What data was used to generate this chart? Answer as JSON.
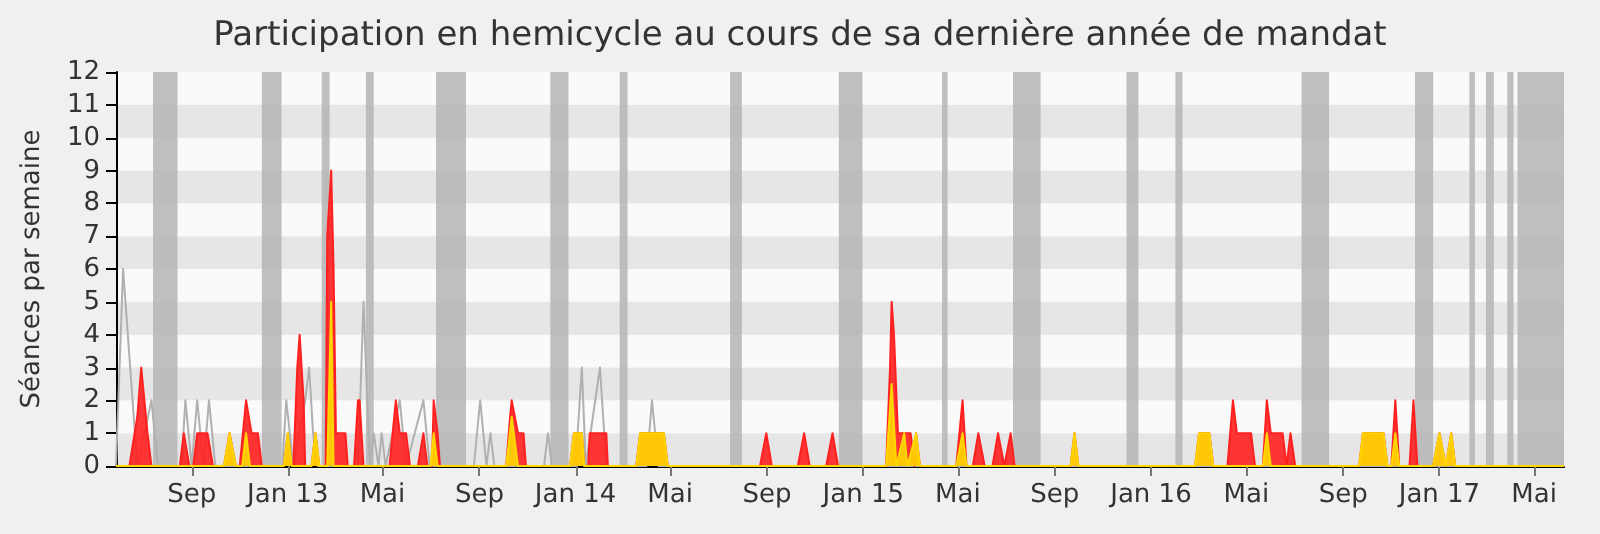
{
  "chart_data": {
    "type": "area",
    "title": "Participation en hemicycle au cours de sa dernière année de mandat",
    "ylabel": "Séances par semaine",
    "xlim": [
      "2012-05-28",
      "2017-06-08"
    ],
    "xticks": [
      {
        "value": "2012-09-01",
        "label": "Sep"
      },
      {
        "value": "2013-01-01",
        "label": "Jan 13"
      },
      {
        "value": "2013-05-01",
        "label": "Mai"
      },
      {
        "value": "2013-09-01",
        "label": "Sep"
      },
      {
        "value": "2014-01-01",
        "label": "Jan 14"
      },
      {
        "value": "2014-05-01",
        "label": "Mai"
      },
      {
        "value": "2014-09-01",
        "label": "Sep"
      },
      {
        "value": "2015-01-01",
        "label": "Jan 15"
      },
      {
        "value": "2015-05-01",
        "label": "Mai"
      },
      {
        "value": "2015-09-01",
        "label": "Sep"
      },
      {
        "value": "2016-01-01",
        "label": "Jan 16"
      },
      {
        "value": "2016-05-01",
        "label": "Mai"
      },
      {
        "value": "2016-09-01",
        "label": "Sep"
      },
      {
        "value": "2017-01-01",
        "label": "Jan 17"
      },
      {
        "value": "2017-05-01",
        "label": "Mai"
      }
    ],
    "ylim": [
      0,
      12
    ],
    "yticks": [
      0,
      1,
      2,
      3,
      4,
      5,
      6,
      7,
      8,
      9,
      10,
      11,
      12
    ],
    "marker": "none",
    "line_style": "solid",
    "bands": [
      {
        "axis": "x",
        "from": "2012-07-14",
        "to": "2012-08-14",
        "color": "#b4b4b4"
      },
      {
        "axis": "x",
        "from": "2012-11-29",
        "to": "2012-12-24",
        "color": "#b4b4b4"
      },
      {
        "axis": "x",
        "from": "2013-02-13",
        "to": "2013-02-23",
        "color": "#b4b4b4"
      },
      {
        "axis": "x",
        "from": "2013-04-10",
        "to": "2013-04-20",
        "color": "#b4b4b4"
      },
      {
        "axis": "x",
        "from": "2013-07-08",
        "to": "2013-08-15",
        "color": "#b4b4b4"
      },
      {
        "axis": "x",
        "from": "2013-11-30",
        "to": "2013-12-23",
        "color": "#b4b4b4"
      },
      {
        "axis": "x",
        "from": "2014-02-26",
        "to": "2014-03-08",
        "color": "#b4b4b4"
      },
      {
        "axis": "x",
        "from": "2014-07-16",
        "to": "2014-07-31",
        "color": "#b4b4b4"
      },
      {
        "axis": "x",
        "from": "2014-12-01",
        "to": "2014-12-31",
        "color": "#b4b4b4"
      },
      {
        "axis": "x",
        "from": "2015-04-11",
        "to": "2015-04-18",
        "color": "#b4b4b4"
      },
      {
        "axis": "x",
        "from": "2015-07-10",
        "to": "2015-08-14",
        "color": "#b4b4b4"
      },
      {
        "axis": "x",
        "from": "2015-12-01",
        "to": "2015-12-16",
        "color": "#b4b4b4"
      },
      {
        "axis": "x",
        "from": "2016-02-01",
        "to": "2016-02-10",
        "color": "#b4b4b4"
      },
      {
        "axis": "x",
        "from": "2016-07-10",
        "to": "2016-08-14",
        "color": "#b4b4b4"
      },
      {
        "axis": "x",
        "from": "2016-12-01",
        "to": "2016-12-24",
        "color": "#b4b4b4"
      },
      {
        "axis": "x",
        "from": "2017-02-08",
        "to": "2017-02-15",
        "color": "#b4b4b4"
      },
      {
        "axis": "x",
        "from": "2017-03-01",
        "to": "2017-03-11",
        "color": "#b4b4b4"
      },
      {
        "axis": "x",
        "from": "2017-03-28",
        "to": "2017-04-05",
        "color": "#b4b4b4"
      },
      {
        "axis": "x",
        "from": "2017-04-10",
        "to": "2017-06-08",
        "color": "#b4b4b4"
      }
    ],
    "series": [
      {
        "type": "line",
        "color": "#b0b0b0",
        "x": [
          "2012-05-28",
          "2012-06-06",
          "2012-06-24",
          "2012-07-12",
          "2012-07-20",
          "2012-08-19",
          "2012-08-24",
          "2012-09-01",
          "2012-09-08",
          "2012-09-16",
          "2012-09-23",
          "2012-10-01",
          "2012-12-25",
          "2012-12-30",
          "2013-01-08",
          "2013-01-23",
          "2013-01-28",
          "2013-02-02",
          "2013-02-08",
          "2013-03-31",
          "2013-04-07",
          "2013-04-15",
          "2013-04-20",
          "2013-04-26",
          "2013-04-30",
          "2013-05-05",
          "2013-05-23",
          "2013-05-31",
          "2013-06-22",
          "2013-06-30",
          "2013-08-25",
          "2013-09-02",
          "2013-09-10",
          "2013-09-15",
          "2013-09-20",
          "2013-11-22",
          "2013-11-27",
          "2013-12-02",
          "2014-01-01",
          "2014-01-09",
          "2014-01-14",
          "2014-02-01",
          "2014-02-09",
          "2014-04-01",
          "2014-04-08",
          "2014-04-16",
          "2017-06-08"
        ],
        "values": [
          0,
          6,
          0,
          2,
          0,
          0,
          2,
          0,
          2,
          0,
          2,
          0,
          0,
          2,
          0,
          2,
          3,
          1,
          0,
          0,
          5,
          0,
          1,
          0,
          1,
          0,
          2,
          0,
          2,
          0,
          0,
          2,
          0,
          1,
          0,
          0,
          1,
          0,
          0,
          3,
          0,
          3,
          0,
          0,
          2,
          0,
          0
        ]
      },
      {
        "color": "#ff2020",
        "x": [
          "2012-05-28",
          "2012-06-14",
          "2012-06-24",
          "2012-06-29",
          "2012-07-07",
          "2012-07-12",
          "2012-08-17",
          "2012-08-22",
          "2012-08-29",
          "2012-09-03",
          "2012-09-08",
          "2012-09-21",
          "2012-09-28",
          "2012-10-12",
          "2012-10-19",
          "2012-10-27",
          "2012-11-01",
          "2012-11-09",
          "2012-11-16",
          "2012-11-24",
          "2012-11-29",
          "2012-12-27",
          "2013-01-01",
          "2013-01-06",
          "2013-01-08",
          "2013-01-13",
          "2013-01-16",
          "2013-01-21",
          "2013-01-23",
          "2013-01-31",
          "2013-02-05",
          "2013-02-10",
          "2013-02-18",
          "2013-02-20",
          "2013-02-25",
          "2013-02-28",
          "2013-03-03",
          "2013-03-15",
          "2013-03-18",
          "2013-03-26",
          "2013-03-31",
          "2013-04-02",
          "2013-04-07",
          "2013-05-10",
          "2013-05-18",
          "2013-05-23",
          "2013-05-31",
          "2013-06-05",
          "2013-06-15",
          "2013-06-22",
          "2013-06-27",
          "2013-07-03",
          "2013-07-05",
          "2013-07-10",
          "2013-07-13",
          "2013-10-05",
          "2013-10-10",
          "2013-10-12",
          "2013-10-20",
          "2013-10-27",
          "2013-10-30",
          "2013-12-25",
          "2013-12-30",
          "2014-01-09",
          "2014-01-12",
          "2014-01-17",
          "2014-01-19",
          "2014-02-09",
          "2014-02-11",
          "2014-03-19",
          "2014-03-24",
          "2014-04-23",
          "2014-04-28",
          "2014-08-23",
          "2014-08-31",
          "2014-09-07",
          "2014-10-10",
          "2014-10-18",
          "2014-10-25",
          "2014-11-15",
          "2014-11-23",
          "2014-11-30",
          "2015-01-30",
          "2015-02-04",
          "2015-02-06",
          "2015-02-09",
          "2015-02-14",
          "2015-02-22",
          "2015-03-02",
          "2015-03-07",
          "2015-03-09",
          "2015-03-14",
          "2015-04-29",
          "2015-05-07",
          "2015-05-12",
          "2015-05-20",
          "2015-05-27",
          "2015-06-04",
          "2015-06-14",
          "2015-06-21",
          "2015-06-29",
          "2015-07-07",
          "2015-07-12",
          "2015-09-21",
          "2015-09-26",
          "2015-10-01",
          "2016-02-26",
          "2016-03-02",
          "2016-03-15",
          "2016-03-20",
          "2016-04-07",
          "2016-04-14",
          "2016-04-19",
          "2016-05-07",
          "2016-05-12",
          "2016-05-22",
          "2016-05-27",
          "2016-06-01",
          "2016-06-16",
          "2016-06-21",
          "2016-06-26",
          "2016-07-02",
          "2016-09-21",
          "2016-09-26",
          "2016-10-22",
          "2016-10-27",
          "2016-11-01",
          "2016-11-06",
          "2016-11-11",
          "2016-11-24",
          "2016-11-29",
          "2016-12-04",
          "2016-12-24",
          "2017-01-01",
          "2017-01-09",
          "2017-01-16",
          "2017-01-21",
          "2017-06-08"
        ],
        "values": [
          0,
          0,
          1.5,
          3,
          1,
          0,
          0,
          1,
          0,
          0,
          1,
          1,
          0,
          0,
          1,
          0,
          0,
          2,
          1,
          1,
          0,
          0,
          1,
          0,
          0,
          3,
          4,
          2,
          0,
          0,
          1,
          0,
          0,
          7,
          9,
          6,
          1,
          1,
          0,
          0,
          2,
          2,
          0,
          0,
          2,
          1,
          1,
          0,
          0,
          1,
          0,
          0,
          2,
          1,
          0,
          0,
          1.5,
          2,
          1,
          1,
          0,
          0,
          1,
          1,
          0,
          0,
          1,
          1,
          0,
          0,
          1,
          1,
          0,
          0,
          1,
          0,
          0,
          1,
          0,
          0,
          1,
          0,
          0,
          3,
          5,
          4,
          1,
          1,
          1,
          0,
          1,
          0,
          0,
          2,
          0,
          0,
          1,
          0,
          0,
          1,
          0,
          1,
          0,
          0,
          1,
          0,
          0,
          1,
          1,
          0,
          0,
          2,
          1,
          1,
          0,
          0,
          2,
          1,
          1,
          0,
          1,
          0,
          0,
          1,
          1,
          0,
          0,
          2,
          0,
          0,
          2,
          0,
          0,
          1,
          0,
          1,
          0,
          0
        ]
      },
      {
        "color": "#ffd700",
        "x": [
          "2012-05-28",
          "2012-10-12",
          "2012-10-19",
          "2012-10-27",
          "2012-11-04",
          "2012-11-09",
          "2012-11-14",
          "2012-12-27",
          "2013-01-01",
          "2013-01-06",
          "2013-01-31",
          "2013-02-05",
          "2013-02-10",
          "2013-02-20",
          "2013-02-25",
          "2013-02-28",
          "2013-07-01",
          "2013-07-05",
          "2013-07-10",
          "2013-10-05",
          "2013-10-12",
          "2013-10-20",
          "2013-12-25",
          "2013-12-30",
          "2014-01-09",
          "2014-01-12",
          "2014-03-19",
          "2014-03-24",
          "2014-04-23",
          "2014-04-28",
          "2015-01-30",
          "2015-02-06",
          "2015-02-12",
          "2015-02-22",
          "2015-02-26",
          "2015-03-09",
          "2015-03-14",
          "2015-04-29",
          "2015-05-07",
          "2015-05-12",
          "2015-09-21",
          "2015-09-26",
          "2015-10-01",
          "2016-02-26",
          "2016-03-02",
          "2016-03-15",
          "2016-03-20",
          "2016-05-22",
          "2016-05-27",
          "2016-06-01",
          "2016-09-21",
          "2016-09-26",
          "2016-10-22",
          "2016-10-27",
          "2016-11-01",
          "2016-11-06",
          "2016-11-11",
          "2016-12-24",
          "2017-01-01",
          "2017-01-09",
          "2017-01-16",
          "2017-01-21",
          "2017-06-08"
        ],
        "values": [
          0,
          0,
          1,
          0,
          0,
          1,
          0,
          0,
          1,
          0,
          0,
          1,
          0,
          0,
          5,
          0,
          0,
          1,
          0,
          0,
          1.5,
          0,
          0,
          1,
          1,
          0,
          0,
          1,
          1,
          0,
          0,
          2.5,
          0,
          1,
          0,
          1,
          0,
          0,
          1,
          0,
          0,
          1,
          0,
          0,
          1,
          1,
          0,
          0,
          1,
          0,
          0,
          1,
          1,
          0,
          0,
          1,
          0,
          0,
          1,
          0,
          1,
          0,
          0
        ]
      }
    ]
  }
}
